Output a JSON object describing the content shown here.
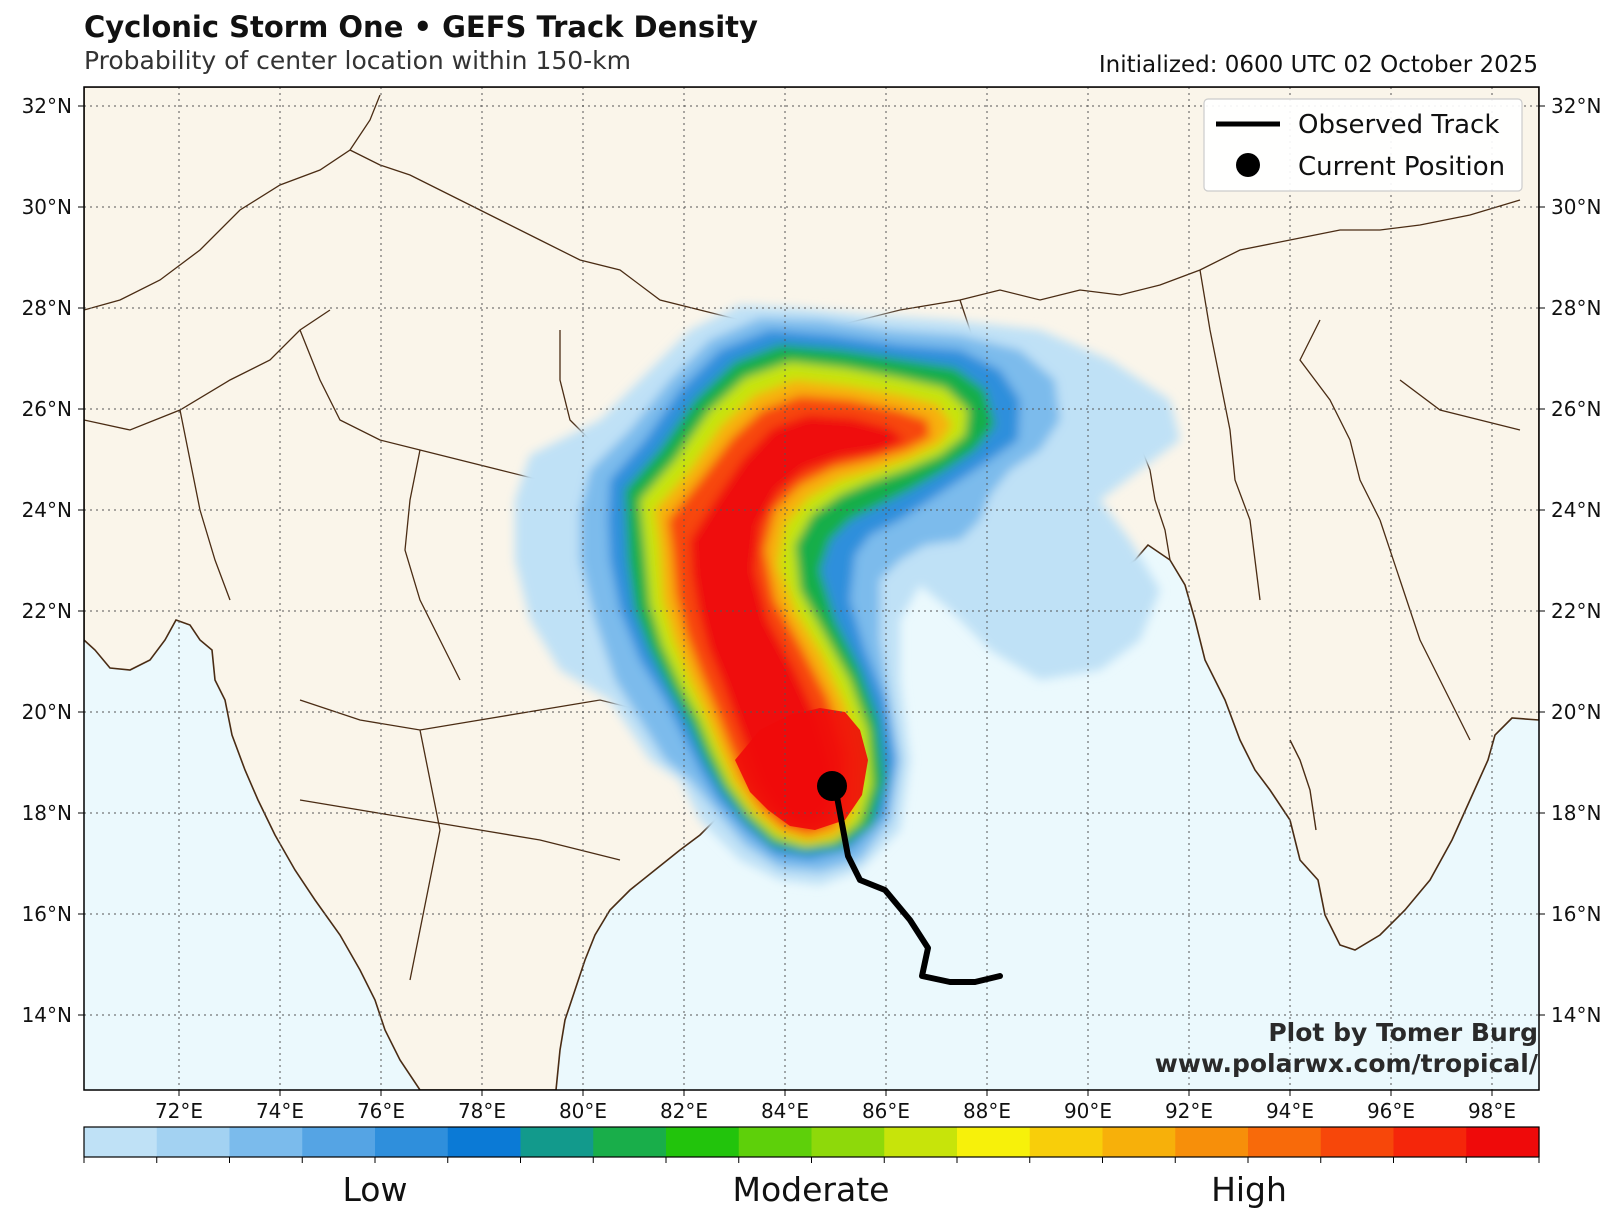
{
  "header": {
    "title": "Cyclonic Storm One • GEFS Track Density",
    "subtitle": "Probability of center location within 150-km",
    "initialized": "Initialized: 0600 UTC 02 October 2025"
  },
  "map": {
    "lon_ticks": [
      "72°E",
      "74°E",
      "76°E",
      "78°E",
      "80°E",
      "82°E",
      "84°E",
      "86°E",
      "88°E",
      "90°E",
      "92°E",
      "94°E",
      "96°E",
      "98°E"
    ],
    "lat_ticks": [
      "32°N",
      "30°N",
      "28°N",
      "26°N",
      "24°N",
      "22°N",
      "20°N",
      "18°N",
      "16°N",
      "14°N"
    ],
    "colors": {
      "land": "#faf5ea",
      "ocean": "#ebf9fd",
      "border": "#4a2c14",
      "track": "#000000"
    }
  },
  "legend": {
    "track_label": "Observed Track",
    "position_label": "Current Position"
  },
  "colorbar": {
    "colors": [
      "#bfe1f6",
      "#a3d2f2",
      "#7bbbec",
      "#55a4e4",
      "#2f8fdc",
      "#0b7ad6",
      "#129a8c",
      "#19ae4a",
      "#22c40c",
      "#5ed00a",
      "#8ed90a",
      "#c7e40a",
      "#f7f10a",
      "#f8ce0a",
      "#f7b00a",
      "#f78f0a",
      "#f86a0a",
      "#f7470a",
      "#f5260a",
      "#ef0a0a"
    ],
    "low": "Low",
    "moderate": "Moderate",
    "high": "High"
  },
  "credit": {
    "line1": "Plot by Tomer Burg",
    "line2": "www.polarwx.com/tropical/"
  }
}
